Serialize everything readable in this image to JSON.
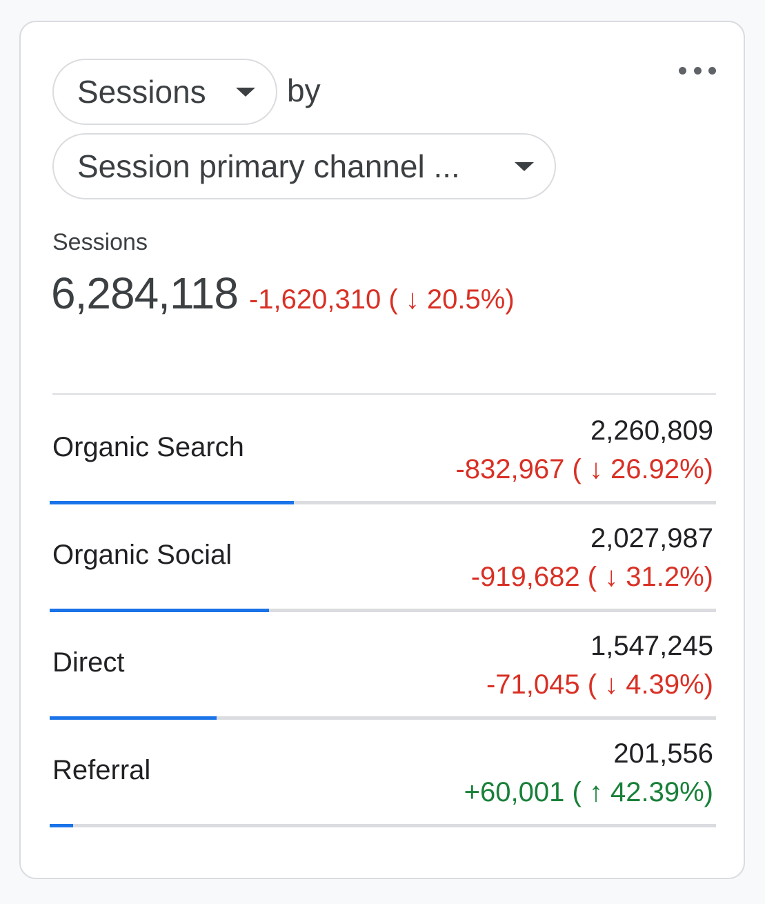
{
  "card": {
    "metric_selector": {
      "label": "Sessions"
    },
    "by_label": "by",
    "dimension_selector": {
      "label": "Session primary channel ..."
    },
    "menu_icon": "more-horizontal-icon"
  },
  "summary": {
    "label": "Sessions",
    "total": "6,284,118",
    "delta": "-1,620,310 ( ↓ 20.5%)"
  },
  "rows": [
    {
      "name": "Organic Search",
      "value": "2,260,809",
      "delta": "-832,967 ( ↓ 26.92%)",
      "trend": "down",
      "share": 0.366
    },
    {
      "name": "Organic Social",
      "value": "2,027,987",
      "delta": "-919,682 ( ↓ 31.2%)",
      "trend": "down",
      "share": 0.329
    },
    {
      "name": "Direct",
      "value": "1,547,245",
      "delta": "-71,045 ( ↓ 4.39%)",
      "trend": "down",
      "share": 0.251
    },
    {
      "name": "Referral",
      "value": "201,556",
      "delta": "+60,001 ( ↑ 42.39%)",
      "trend": "up",
      "share": 0.035
    }
  ],
  "colors": {
    "negative": "#d93025",
    "positive": "#188038",
    "bar": "#1a73e8",
    "track": "#dadce0"
  }
}
